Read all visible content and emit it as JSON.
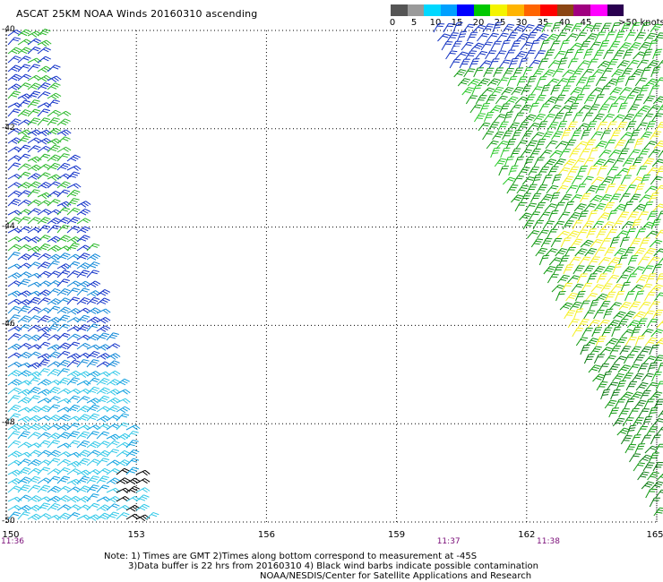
{
  "title": "ASCAT 25KM NOAA Winds 20160310 ascending",
  "colorbar": {
    "colors": [
      "#555555",
      "#9a9a9a",
      "#00d8ff",
      "#00a0ff",
      "#0000ff",
      "#00c800",
      "#f4f400",
      "#ffb400",
      "#ff6400",
      "#ff0000",
      "#8b4513",
      "#a00080",
      "#ff00ff",
      "#2a0050"
    ],
    "labels": [
      "0",
      "5",
      "10",
      "15",
      "20",
      "25",
      "30",
      "35",
      "40",
      "45",
      ">50 knots"
    ],
    "values": [
      0,
      5,
      10,
      15,
      20,
      25,
      30,
      35,
      40,
      45,
      50
    ]
  },
  "axes": {
    "lon_ticks": [
      "150",
      "153",
      "156",
      "159",
      "162",
      "165"
    ],
    "lon_values": [
      150,
      153,
      156,
      159,
      162,
      165
    ],
    "lat_ticks": [
      "-40",
      "-42",
      "-44",
      "-46",
      "-48",
      "-50"
    ],
    "lat_values": [
      -40,
      -42,
      -44,
      -46,
      -48,
      -50
    ],
    "lon_range": [
      150,
      165
    ],
    "lat_range": [
      -50,
      -40
    ],
    "grid": "dotted"
  },
  "times": [
    {
      "label": "11:36",
      "lon": 150
    },
    {
      "label": "11:37",
      "lon": 160.2
    },
    {
      "label": "11:38",
      "lon": 162.5
    }
  ],
  "notes": {
    "line1": "Note: 1) Times are GMT 2)Times along bottom correspond to measurement at -45S",
    "line2": "3)Data buffer is 22 hrs from 20160310 4) Black wind barbs indicate possible contamination",
    "line3": "NOAA/NESDIS/Center for Satellite Applications and Research"
  },
  "swaths": [
    {
      "name": "west",
      "ranges_knots": [
        10,
        20
      ],
      "colors": [
        "#1030c8",
        "#2040d8",
        "#28b020",
        "#30c8e0",
        "#20b0d8"
      ]
    },
    {
      "name": "east",
      "ranges_knots": [
        15,
        30
      ],
      "colors": [
        "#18c818",
        "#109010",
        "#f0f020",
        "#1030c0"
      ]
    }
  ]
}
